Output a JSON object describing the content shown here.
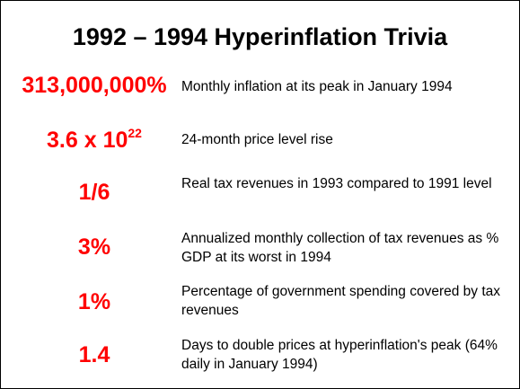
{
  "title": "1992 – 1994 Hyperinflation Trivia",
  "colors": {
    "stat": "#ff0000",
    "text": "#000000",
    "border": "#000000",
    "background": "#ffffff"
  },
  "rows": [
    {
      "stat": "313,000,000%",
      "description": "Monthly inflation at its peak in January 1994"
    },
    {
      "stat_base": "3.6 x 10",
      "stat_exponent": "22",
      "description": "24-month price level rise"
    },
    {
      "stat": "1/6",
      "description": "Real tax revenues in 1993 compared to 1991 level"
    },
    {
      "stat": "3%",
      "description": "Annualized monthly collection of tax revenues as % GDP at its worst in 1994"
    },
    {
      "stat": "1%",
      "description": "Percentage of government spending covered by tax revenues"
    },
    {
      "stat": "1.4",
      "description": "Days to double prices at hyperinflation's peak (64% daily in January 1994)"
    }
  ]
}
